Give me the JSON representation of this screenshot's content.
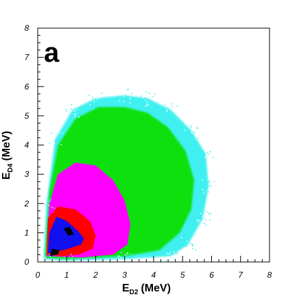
{
  "chart_data": {
    "type": "heatmap",
    "panel_label": "a",
    "xlabel": "E",
    "xlabel_sub": "D2",
    "xlabel_unit": "(MeV)",
    "ylabel": "E",
    "ylabel_sub": "D4",
    "ylabel_unit": "(MeV)",
    "xlim": [
      0,
      8
    ],
    "ylim": [
      0,
      8
    ],
    "x_ticks": [
      "0",
      "1",
      "2",
      "3",
      "4",
      "5",
      "6",
      "7",
      "8"
    ],
    "y_ticks": [
      "0",
      "1",
      "2",
      "3",
      "4",
      "5",
      "6",
      "7",
      "8"
    ],
    "grid": false,
    "colors": {
      "level1": "#40f0f0",
      "level2": "#10e010",
      "level3": "#ff00ff",
      "level4": "#ff0000",
      "level5": "#1010f0",
      "level6": "#000000"
    },
    "density_regions": [
      {
        "level": 1,
        "outline": [
          [
            0.2,
            0.1
          ],
          [
            0.3,
            2.0
          ],
          [
            0.6,
            4.2
          ],
          [
            1.2,
            5.2
          ],
          [
            2.0,
            5.6
          ],
          [
            3.0,
            5.7
          ],
          [
            3.8,
            5.6
          ],
          [
            4.6,
            5.2
          ],
          [
            5.3,
            4.5
          ],
          [
            5.8,
            3.7
          ],
          [
            5.9,
            2.6
          ],
          [
            5.7,
            1.5
          ],
          [
            5.2,
            0.6
          ],
          [
            4.6,
            0.2
          ],
          [
            3.0,
            0.1
          ],
          [
            1.0,
            0.05
          ]
        ]
      },
      {
        "level": 2,
        "outline": [
          [
            0.25,
            0.15
          ],
          [
            0.4,
            2.4
          ],
          [
            0.7,
            4.0
          ],
          [
            1.3,
            4.9
          ],
          [
            2.1,
            5.3
          ],
          [
            3.0,
            5.3
          ],
          [
            3.8,
            5.1
          ],
          [
            4.5,
            4.6
          ],
          [
            5.1,
            3.8
          ],
          [
            5.4,
            2.8
          ],
          [
            5.3,
            1.8
          ],
          [
            4.9,
            1.0
          ],
          [
            4.2,
            0.4
          ],
          [
            3.0,
            0.2
          ],
          [
            1.0,
            0.1
          ]
        ]
      },
      {
        "level": 3,
        "outline": [
          [
            0.3,
            0.2
          ],
          [
            0.4,
            2.0
          ],
          [
            0.7,
            3.0
          ],
          [
            1.3,
            3.4
          ],
          [
            2.0,
            3.3
          ],
          [
            2.6,
            2.8
          ],
          [
            3.0,
            2.1
          ],
          [
            3.2,
            1.3
          ],
          [
            3.1,
            0.6
          ],
          [
            2.6,
            0.25
          ],
          [
            1.5,
            0.15
          ]
        ]
      },
      {
        "level": 4,
        "outline": [
          [
            0.3,
            0.25
          ],
          [
            0.35,
            1.5
          ],
          [
            0.7,
            1.9
          ],
          [
            1.3,
            1.8
          ],
          [
            1.8,
            1.4
          ],
          [
            2.0,
            0.9
          ],
          [
            1.9,
            0.45
          ],
          [
            1.4,
            0.25
          ],
          [
            0.8,
            0.2
          ]
        ]
      },
      {
        "level": 5,
        "outline": [
          [
            0.35,
            0.3
          ],
          [
            0.4,
            1.0
          ],
          [
            0.65,
            1.55
          ],
          [
            1.0,
            1.4
          ],
          [
            1.4,
            1.05
          ],
          [
            1.6,
            0.8
          ],
          [
            1.5,
            0.6
          ],
          [
            1.05,
            0.45
          ],
          [
            0.6,
            0.35
          ]
        ]
      },
      {
        "level": 6,
        "outline": [
          [
            0.4,
            0.2
          ],
          [
            0.7,
            0.25
          ],
          [
            0.75,
            0.4
          ],
          [
            0.5,
            0.45
          ]
        ]
      },
      {
        "level": 6,
        "outline": [
          [
            0.9,
            1.15
          ],
          [
            1.1,
            1.2
          ],
          [
            1.25,
            0.95
          ],
          [
            1.05,
            0.9
          ]
        ]
      }
    ]
  }
}
